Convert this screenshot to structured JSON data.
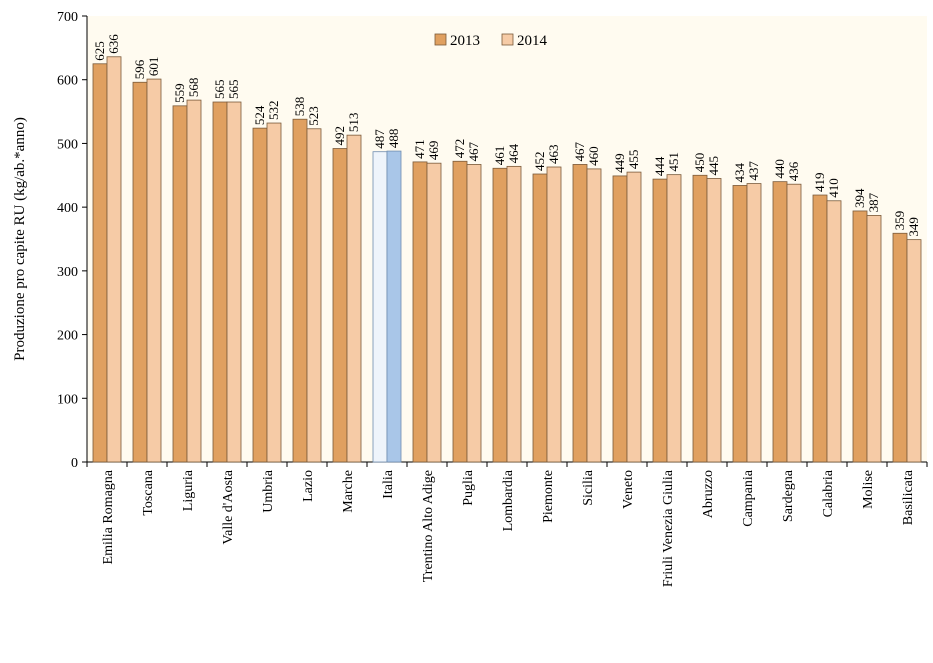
{
  "chart_data": {
    "type": "bar",
    "ylabel": "Produzione pro capite RU (kg/ab.*anno)",
    "xlabel": "",
    "ylim": [
      0,
      700
    ],
    "yticks": [
      0,
      100,
      200,
      300,
      400,
      500,
      600,
      700
    ],
    "legend_position": "top-center",
    "categories": [
      "Emilia Romagna",
      "Toscana",
      "Liguria",
      "Valle d'Aosta",
      "Umbria",
      "Lazio",
      "Marche",
      "Italia",
      "Trentino Alto Adige",
      "Puglia",
      "Lombardia",
      "Piemonte",
      "Sicilia",
      "Veneto",
      "Friuli Venezia Giulia",
      "Abruzzo",
      "Campania",
      "Sardegna",
      "Calabria",
      "Molise",
      "Basilicata"
    ],
    "highlight_category": "Italia",
    "series": [
      {
        "name": "2013",
        "color": "#E0A060",
        "highlight_color": "#EEF4FB",
        "values": [
          625,
          596,
          559,
          565,
          524,
          538,
          492,
          487,
          471,
          472,
          461,
          452,
          467,
          449,
          444,
          450,
          434,
          440,
          419,
          394,
          359
        ]
      },
      {
        "name": "2014",
        "color": "#F6CBA6",
        "highlight_color": "#A9C6E8",
        "values": [
          636,
          601,
          568,
          565,
          532,
          523,
          513,
          488,
          469,
          467,
          464,
          463,
          460,
          455,
          451,
          445,
          437,
          436,
          410,
          387,
          349
        ]
      }
    ]
  },
  "colors": {
    "plot_background": "#FFFBF0",
    "bar_outline": "#7A5A3A",
    "highlight_outline": "#6E8DB0"
  }
}
